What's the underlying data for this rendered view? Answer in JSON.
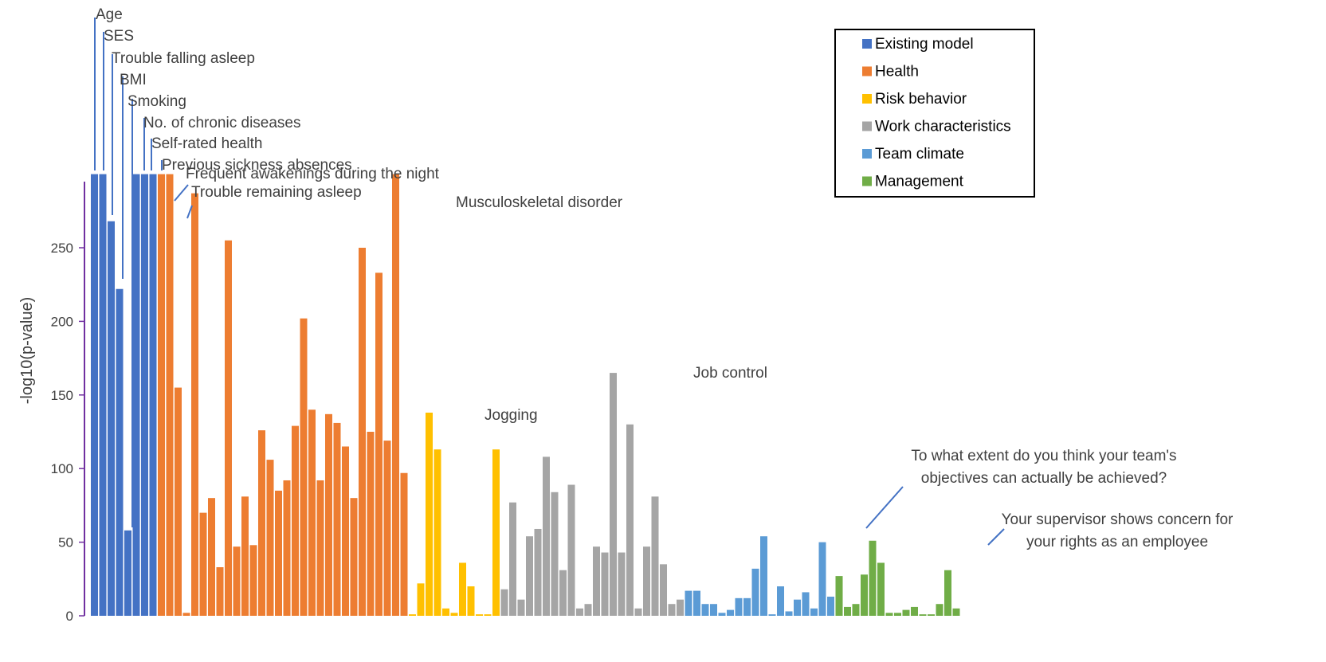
{
  "chart_data": {
    "type": "bar",
    "xlabel": "",
    "ylabel": "-log10(p-value)",
    "ylim": [
      0,
      300
    ],
    "yticks": [
      0,
      50,
      100,
      150,
      200,
      250
    ],
    "legend": {
      "position": "top-right",
      "entries": [
        {
          "name": "Existing model",
          "color": "#4472C4"
        },
        {
          "name": "Health",
          "color": "#ED7D31"
        },
        {
          "name": "Risk behavior",
          "color": "#FFC000"
        },
        {
          "name": "Work characteristics",
          "color": "#A5A5A5"
        },
        {
          "name": "Team climate",
          "color": "#5B9BD5"
        },
        {
          "name": "Management",
          "color": "#70AD47"
        }
      ]
    },
    "groups": [
      {
        "name": "Existing model",
        "values": [
          300,
          300,
          268,
          222,
          58,
          300,
          300,
          300
        ]
      },
      {
        "name": "Health",
        "values": [
          300,
          300,
          155,
          2,
          287,
          70,
          80,
          33,
          255,
          47,
          81,
          48,
          126,
          106,
          85,
          92,
          129,
          202,
          140,
          92,
          137,
          131,
          115,
          80,
          250,
          125,
          233,
          119,
          300,
          97
        ]
      },
      {
        "name": "Risk behavior",
        "values": [
          1,
          22,
          138,
          113,
          5,
          2,
          36,
          20,
          1,
          1,
          113
        ]
      },
      {
        "name": "Work characteristics",
        "values": [
          18,
          77,
          11,
          54,
          59,
          108,
          84,
          31,
          89,
          5,
          8,
          47,
          43,
          165,
          43,
          130,
          5,
          47,
          81,
          35,
          8,
          11
        ]
      },
      {
        "name": "Team climate",
        "values": [
          17,
          17,
          8,
          8,
          2,
          4,
          12,
          12,
          32,
          54,
          1,
          20,
          3,
          11,
          16,
          5,
          50,
          13
        ]
      },
      {
        "name": "Management",
        "values": [
          27,
          6,
          8,
          28,
          51,
          36,
          2,
          2,
          4,
          6,
          1,
          1,
          8,
          31,
          5
        ]
      }
    ],
    "annotations": [
      {
        "text": "Age",
        "bar": 0
      },
      {
        "text": "SES",
        "bar": 1
      },
      {
        "text": "Trouble falling asleep",
        "bar": 2
      },
      {
        "text": "BMI",
        "bar": 3
      },
      {
        "text": "Smoking",
        "bar": 4
      },
      {
        "text": "No. of chronic diseases",
        "bar": 5
      },
      {
        "text": "Self-rated health",
        "bar": 6
      },
      {
        "text": "Previous sickness absences",
        "bar": 7
      },
      {
        "text": "Frequent awakenings during the night",
        "bar": 8
      },
      {
        "text": "Trouble remaining asleep",
        "bar": 9
      },
      {
        "text": "Musculoskeletal disorder",
        "bar": 36
      },
      {
        "text": "Jogging",
        "bar": 40
      },
      {
        "text": "Job control",
        "bar": 62
      },
      {
        "text": "To what extent do you think your team's",
        "line2": "objectives can actually be achieved?",
        "bar": 80
      },
      {
        "text": "Your supervisor shows concern for",
        "line2": "your rights as an employee",
        "bar": 93
      }
    ]
  }
}
